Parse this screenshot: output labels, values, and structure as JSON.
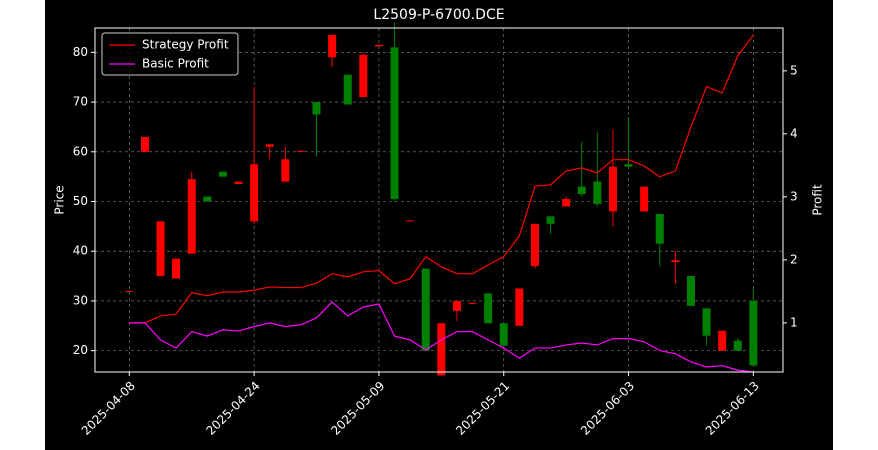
{
  "chart_data": {
    "type": "candlestick",
    "title": "L2509-P-6700.DCE",
    "ylabel": "Price",
    "y2label": "Profit",
    "categories": [
      "2025-04-08",
      null,
      null,
      null,
      null,
      null,
      null,
      null,
      "2025-04-24",
      null,
      null,
      null,
      null,
      null,
      null,
      null,
      "2025-05-09",
      null,
      null,
      null,
      null,
      null,
      null,
      null,
      "2025-05-21",
      null,
      null,
      null,
      null,
      null,
      null,
      null,
      "2025-06-03",
      null,
      null,
      null,
      null,
      null,
      null,
      null,
      "2025-06-13"
    ],
    "open": [
      32,
      60,
      35,
      34.5,
      39.5,
      51,
      56,
      53.5,
      46,
      61,
      54,
      60,
      70,
      79,
      75.5,
      71,
      81.2,
      81,
      46,
      36.5,
      15,
      28,
      29.4,
      31.5,
      25.5,
      25,
      37,
      47,
      49,
      53,
      54,
      48,
      57.5,
      48,
      47.5,
      37.8,
      35,
      28.5,
      20,
      22,
      30
    ],
    "high": [
      32,
      63,
      46,
      38.5,
      56,
      51,
      56,
      54,
      73,
      61.5,
      61,
      60.2,
      70,
      83.5,
      75.5,
      80,
      81.5,
      86,
      46.2,
      36.5,
      25.5,
      30,
      29.6,
      31.5,
      25.5,
      32.5,
      45.5,
      47,
      51,
      62,
      64,
      64.5,
      67,
      53,
      47.5,
      40,
      35,
      28.5,
      24,
      22.5,
      32.5
    ],
    "low": [
      32,
      60,
      35,
      34.5,
      39.5,
      50,
      55,
      53.5,
      45.5,
      58.5,
      54,
      60,
      59,
      77,
      69.5,
      71,
      81.2,
      50,
      46,
      20,
      15,
      26,
      29.4,
      25.5,
      21,
      25,
      36.5,
      43.5,
      49,
      51,
      49,
      45,
      57,
      48,
      37,
      33.5,
      29,
      21,
      20,
      20,
      17
    ],
    "close": [
      32,
      63,
      46,
      38.5,
      54.5,
      50,
      55,
      54,
      57.5,
      61.5,
      58.5,
      60.2,
      67.5,
      83.5,
      69.5,
      79.5,
      81.5,
      50.5,
      46.2,
      20,
      25.5,
      30,
      29.6,
      25.5,
      21,
      32.5,
      45.5,
      45.5,
      50.5,
      51.5,
      49.5,
      57,
      57,
      53,
      41.5,
      38.2,
      29,
      23,
      24,
      20,
      17
    ],
    "up_color": "#ff0000",
    "down_color": "#008000",
    "series": [
      {
        "name": "Strategy Profit",
        "color": "#ff0000",
        "axis": "y2",
        "values": [
          1.0,
          1.0,
          1.11,
          1.14,
          1.48,
          1.43,
          1.49,
          1.49,
          1.52,
          1.57,
          1.56,
          1.56,
          1.63,
          1.78,
          1.73,
          1.81,
          1.83,
          1.62,
          1.7,
          2.05,
          1.89,
          1.78,
          1.78,
          1.92,
          2.05,
          2.38,
          3.17,
          3.19,
          3.41,
          3.46,
          3.38,
          3.59,
          3.59,
          3.49,
          3.32,
          3.41,
          4.11,
          4.75,
          4.65,
          5.24,
          5.57
        ]
      },
      {
        "name": "Basic Profit",
        "color": "#ff00ff",
        "axis": "y2",
        "values": [
          1.0,
          1.0,
          0.73,
          0.6,
          0.86,
          0.79,
          0.89,
          0.87,
          0.94,
          1.0,
          0.94,
          0.97,
          1.08,
          1.33,
          1.11,
          1.25,
          1.3,
          0.79,
          0.73,
          0.57,
          0.73,
          0.86,
          0.86,
          0.73,
          0.6,
          0.44,
          0.6,
          0.6,
          0.65,
          0.68,
          0.65,
          0.75,
          0.75,
          0.7,
          0.56,
          0.51,
          0.38,
          0.3,
          0.32,
          0.25,
          0.22
        ]
      }
    ],
    "xlim": [
      -2.2,
      41.9
    ],
    "ylim": [
      15.7,
      84.9
    ],
    "yticks": [
      20,
      30,
      40,
      50,
      60,
      70,
      80
    ],
    "y2lim": [
      0.22,
      5.68
    ],
    "y2ticks": [
      1,
      2,
      3,
      4,
      5
    ],
    "grid": true,
    "legend": "upper left"
  }
}
